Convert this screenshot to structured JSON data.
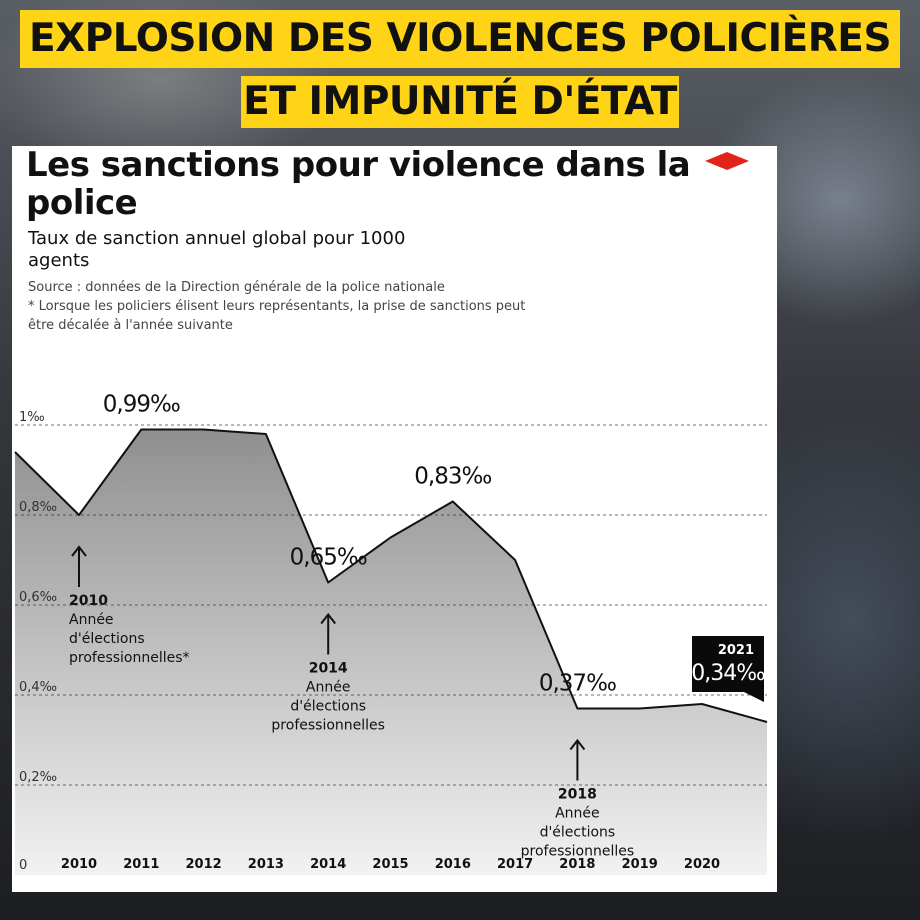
{
  "headline": {
    "line1": "Explosion des violences policières",
    "line2": "et impunité d'État"
  },
  "card": {
    "title": "Les sanctions pour violence dans la police",
    "subtitle": "Taux de sanction annuel global pour 1000 agents",
    "source": "Source : données de la Direction générale de la police nationale",
    "footnote": "* Lorsque les policiers élisent leurs représentants, la prise de sanctions peut être décalée à l'année suivante",
    "brand_color": "#e2231a"
  },
  "chart_data": {
    "type": "area",
    "x": [
      2009.75,
      2010,
      2011,
      2012,
      2013,
      2014,
      2015,
      2016,
      2017,
      2018,
      2019,
      2020,
      2021
    ],
    "y": [
      0.94,
      0.8,
      0.99,
      0.99,
      0.98,
      0.65,
      0.75,
      0.83,
      0.7,
      0.37,
      0.37,
      0.38,
      0.34
    ],
    "xticks": [
      "2010",
      "2011",
      "2012",
      "2013",
      "2014",
      "2015",
      "2016",
      "2017",
      "2018",
      "2019",
      "2020"
    ],
    "yticks": [
      {
        "value": 0,
        "label": "0"
      },
      {
        "value": 0.2,
        "label": "0,2‰"
      },
      {
        "value": 0.4,
        "label": "0,4‰"
      },
      {
        "value": 0.6,
        "label": "0,6‰"
      },
      {
        "value": 0.8,
        "label": "0,8‰"
      },
      {
        "value": 1.0,
        "label": "1‰"
      }
    ],
    "ylim": [
      0,
      1.0
    ],
    "grid": true,
    "fill_top_color": "#8f8f8f",
    "fill_bottom_color": "#f2f2f2",
    "line_color": "#111111",
    "data_labels": [
      {
        "year": 2011,
        "value": 0.99,
        "label": "0,99‰"
      },
      {
        "year": 2014,
        "value": 0.65,
        "label": "0,65‰"
      },
      {
        "year": 2016,
        "value": 0.83,
        "label": "0,83‰"
      },
      {
        "year": 2018,
        "value": 0.37,
        "label": "0,37‰"
      },
      {
        "year": 2021,
        "value": 0.34,
        "label": "0,34‰",
        "caption": "2021"
      }
    ],
    "annotations": [
      {
        "year": 2010,
        "text": [
          "2010",
          "Année",
          "d'élections",
          "professionnelles*"
        ]
      },
      {
        "year": 2014,
        "text": [
          "2014",
          "Année",
          "d'élections",
          "professionnelles"
        ]
      },
      {
        "year": 2018,
        "text": [
          "2018",
          "Année",
          "d'élections",
          "professionnelles"
        ]
      }
    ]
  }
}
